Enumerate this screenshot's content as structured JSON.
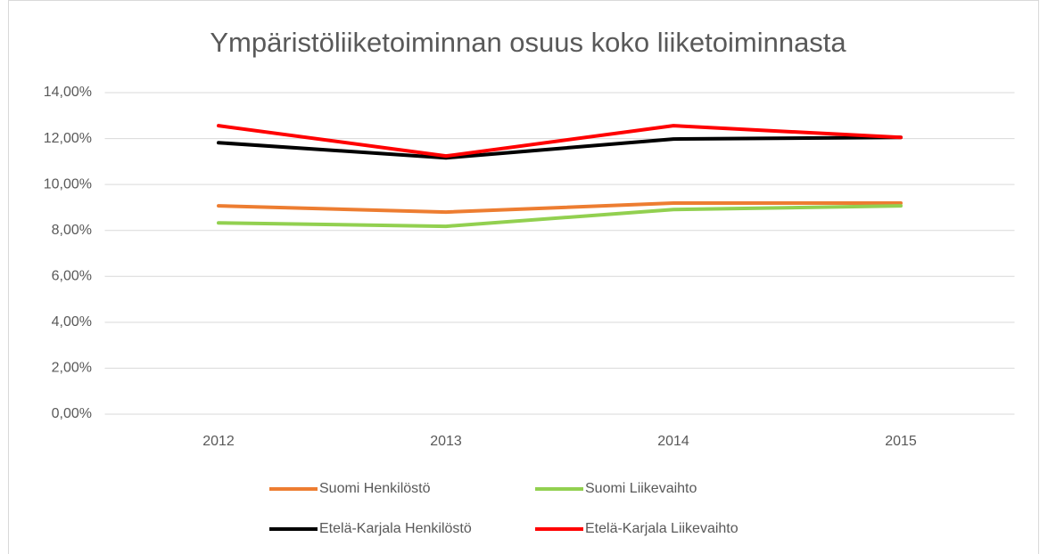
{
  "chart_data": {
    "type": "line",
    "title": "Ympäristöliiketoiminnan osuus koko liiketoiminnasta",
    "categories": [
      "2012",
      "2013",
      "2014",
      "2015"
    ],
    "series": [
      {
        "name": "Suomi Henkilöstö",
        "color": "#ed7d31",
        "values": [
          9.07,
          8.8,
          9.19,
          9.19
        ]
      },
      {
        "name": "Suomi Liikevaihto",
        "color": "#92d050",
        "values": [
          8.33,
          8.18,
          8.91,
          9.07
        ]
      },
      {
        "name": "Etelä-Karjala Henkilöstö",
        "color": "#000000",
        "values": [
          11.82,
          11.16,
          11.98,
          12.05
        ]
      },
      {
        "name": "Etelä-Karjala Liikevaihto",
        "color": "#ff0000",
        "values": [
          12.56,
          11.24,
          12.56,
          12.05
        ]
      }
    ],
    "ylim": [
      0,
      14
    ],
    "yticks": [
      {
        "value": 0,
        "label": "0,00%"
      },
      {
        "value": 2,
        "label": "2,00%"
      },
      {
        "value": 4,
        "label": "4,00%"
      },
      {
        "value": 6,
        "label": "6,00%"
      },
      {
        "value": 8,
        "label": "8,00%"
      },
      {
        "value": 10,
        "label": "10,00%"
      },
      {
        "value": 12,
        "label": "12,00%"
      },
      {
        "value": 14,
        "label": "14,00%"
      }
    ],
    "grid": true,
    "legend": "bottom"
  }
}
